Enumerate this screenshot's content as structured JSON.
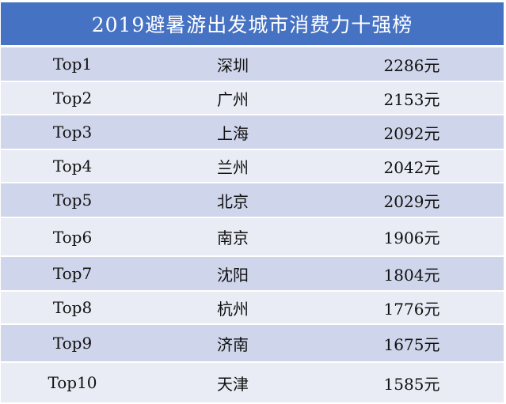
{
  "title": "2019避暑游出发城市消费力十强榜",
  "chart_data": {
    "type": "table",
    "title": "2019避暑游出发城市消费力十强榜",
    "columns": [
      "rank",
      "city",
      "spend"
    ],
    "rows": [
      {
        "rank": "Top1",
        "city": "深圳",
        "spend": "2286元",
        "value": 2286
      },
      {
        "rank": "Top2",
        "city": "广州",
        "spend": "2153元",
        "value": 2153
      },
      {
        "rank": "Top3",
        "city": "上海",
        "spend": "2092元",
        "value": 2092
      },
      {
        "rank": "Top4",
        "city": "兰州",
        "spend": "2042元",
        "value": 2042
      },
      {
        "rank": "Top5",
        "city": "北京",
        "spend": "2029元",
        "value": 2029
      },
      {
        "rank": "Top6",
        "city": "南京",
        "spend": "1906元",
        "value": 1906
      },
      {
        "rank": "Top7",
        "city": "沈阳",
        "spend": "1804元",
        "value": 1804
      },
      {
        "rank": "Top8",
        "city": "杭州",
        "spend": "1776元",
        "value": 1776
      },
      {
        "rank": "Top9",
        "city": "济南",
        "spend": "1675元",
        "value": 1675
      },
      {
        "rank": "Top10",
        "city": "天津",
        "spend": "1585元",
        "value": 1585
      }
    ]
  },
  "colors": {
    "header_bg": "#4672c3",
    "row_dark": "#cfd5ea",
    "row_light": "#e9ebf5"
  }
}
